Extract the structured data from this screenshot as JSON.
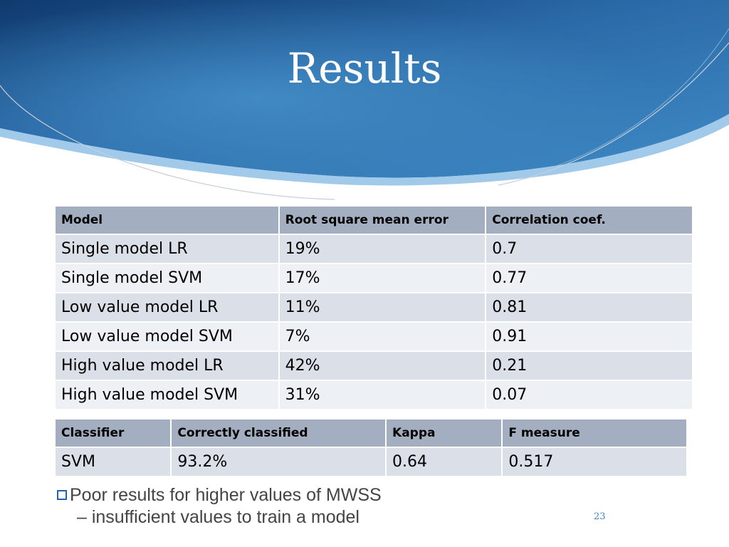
{
  "slide": {
    "title": "Results",
    "page_number": "23",
    "accent_colors": {
      "header_dark": "#143d72",
      "header_light": "#3d8ac3",
      "table_header": "#a3aec1",
      "bullet": "#2563a8"
    }
  },
  "table1": {
    "headers": [
      "Model",
      "Root square mean error",
      "Correlation coef."
    ],
    "rows": [
      [
        "Single model LR",
        "19%",
        "0.7"
      ],
      [
        "Single model SVM",
        "17%",
        "0.77"
      ],
      [
        "Low value model LR",
        "11%",
        "0.81"
      ],
      [
        "Low value model SVM",
        "7%",
        "0.91"
      ],
      [
        "High value model LR",
        "42%",
        "0.21"
      ],
      [
        "High value model SVM",
        "31%",
        "0.07"
      ]
    ]
  },
  "table2": {
    "headers": [
      "Classifier",
      "Correctly classified",
      "Kappa",
      "F measure"
    ],
    "rows": [
      [
        "SVM",
        "93.2%",
        "0.64",
        "0.517"
      ]
    ]
  },
  "note": {
    "bullet_icon": "checkbox-bullet-icon",
    "line1": "Poor results for higher values of MWSS",
    "line2": "– insufficient values to train a model"
  }
}
